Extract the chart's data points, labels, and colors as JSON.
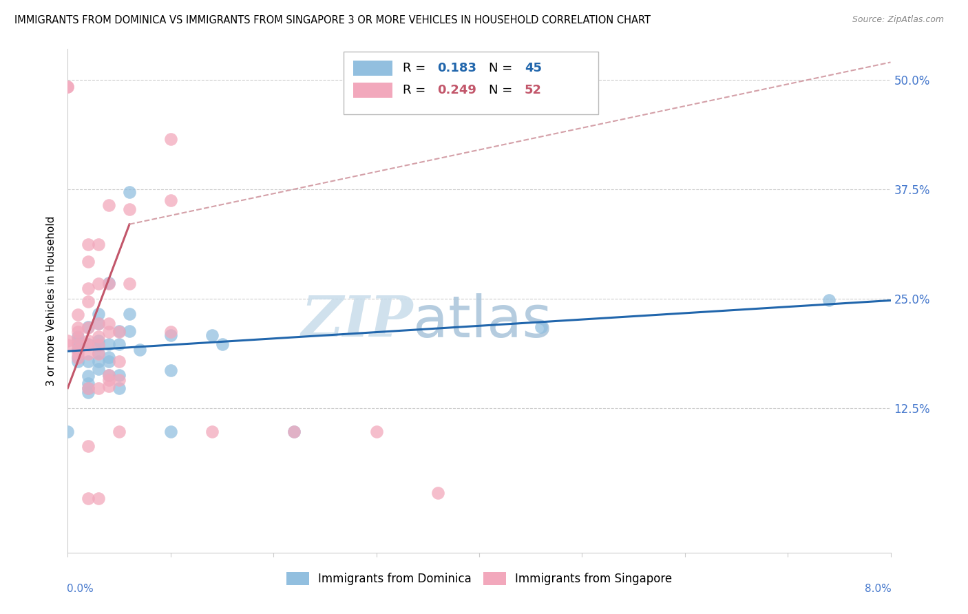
{
  "title": "IMMIGRANTS FROM DOMINICA VS IMMIGRANTS FROM SINGAPORE 3 OR MORE VEHICLES IN HOUSEHOLD CORRELATION CHART",
  "source": "Source: ZipAtlas.com",
  "ylabel": "3 or more Vehicles in Household",
  "ytick_labels": [
    "12.5%",
    "25.0%",
    "37.5%",
    "50.0%"
  ],
  "ytick_values": [
    0.125,
    0.25,
    0.375,
    0.5
  ],
  "xmin": 0.0,
  "xmax": 0.08,
  "ymin": -0.04,
  "ymax": 0.535,
  "watermark_zip": "ZIP",
  "watermark_atlas": "atlas",
  "legend_blue_r": "0.183",
  "legend_blue_n": "45",
  "legend_pink_r": "0.249",
  "legend_pink_n": "52",
  "blue_color": "#92bfdf",
  "pink_color": "#f2a8bc",
  "blue_line_color": "#2166ac",
  "pink_line_color": "#c2566a",
  "pink_dash_color": "#d4a0a8",
  "blue_line": [
    [
      0.0,
      0.19
    ],
    [
      0.08,
      0.248
    ]
  ],
  "pink_line_solid": [
    [
      0.0,
      0.148
    ],
    [
      0.006,
      0.335
    ]
  ],
  "pink_line_dash": [
    [
      0.006,
      0.335
    ],
    [
      0.08,
      0.52
    ]
  ],
  "blue_scatter": [
    [
      0.0,
      0.098
    ],
    [
      0.001,
      0.192
    ],
    [
      0.001,
      0.197
    ],
    [
      0.001,
      0.202
    ],
    [
      0.001,
      0.207
    ],
    [
      0.001,
      0.183
    ],
    [
      0.001,
      0.178
    ],
    [
      0.002,
      0.178
    ],
    [
      0.002,
      0.198
    ],
    [
      0.002,
      0.162
    ],
    [
      0.002,
      0.153
    ],
    [
      0.002,
      0.148
    ],
    [
      0.002,
      0.143
    ],
    [
      0.002,
      0.218
    ],
    [
      0.003,
      0.202
    ],
    [
      0.003,
      0.188
    ],
    [
      0.003,
      0.197
    ],
    [
      0.003,
      0.178
    ],
    [
      0.003,
      0.17
    ],
    [
      0.003,
      0.222
    ],
    [
      0.003,
      0.233
    ],
    [
      0.004,
      0.198
    ],
    [
      0.004,
      0.178
    ],
    [
      0.004,
      0.183
    ],
    [
      0.004,
      0.268
    ],
    [
      0.004,
      0.163
    ],
    [
      0.005,
      0.198
    ],
    [
      0.005,
      0.163
    ],
    [
      0.005,
      0.148
    ],
    [
      0.005,
      0.213
    ],
    [
      0.006,
      0.213
    ],
    [
      0.006,
      0.372
    ],
    [
      0.006,
      0.233
    ],
    [
      0.007,
      0.192
    ],
    [
      0.01,
      0.208
    ],
    [
      0.01,
      0.168
    ],
    [
      0.01,
      0.098
    ],
    [
      0.014,
      0.208
    ],
    [
      0.015,
      0.198
    ],
    [
      0.022,
      0.098
    ],
    [
      0.046,
      0.218
    ],
    [
      0.074,
      0.248
    ]
  ],
  "pink_scatter": [
    [
      0.0,
      0.202
    ],
    [
      0.0,
      0.197
    ],
    [
      0.0,
      0.492
    ],
    [
      0.0,
      0.492
    ],
    [
      0.001,
      0.232
    ],
    [
      0.001,
      0.217
    ],
    [
      0.001,
      0.212
    ],
    [
      0.001,
      0.205
    ],
    [
      0.001,
      0.198
    ],
    [
      0.001,
      0.192
    ],
    [
      0.001,
      0.187
    ],
    [
      0.001,
      0.182
    ],
    [
      0.002,
      0.312
    ],
    [
      0.002,
      0.292
    ],
    [
      0.002,
      0.262
    ],
    [
      0.002,
      0.247
    ],
    [
      0.002,
      0.217
    ],
    [
      0.002,
      0.202
    ],
    [
      0.002,
      0.197
    ],
    [
      0.002,
      0.187
    ],
    [
      0.002,
      0.148
    ],
    [
      0.002,
      0.082
    ],
    [
      0.002,
      0.022
    ],
    [
      0.003,
      0.312
    ],
    [
      0.003,
      0.267
    ],
    [
      0.003,
      0.222
    ],
    [
      0.003,
      0.207
    ],
    [
      0.003,
      0.197
    ],
    [
      0.003,
      0.187
    ],
    [
      0.003,
      0.148
    ],
    [
      0.003,
      0.022
    ],
    [
      0.004,
      0.357
    ],
    [
      0.004,
      0.267
    ],
    [
      0.004,
      0.222
    ],
    [
      0.004,
      0.212
    ],
    [
      0.004,
      0.163
    ],
    [
      0.004,
      0.157
    ],
    [
      0.004,
      0.15
    ],
    [
      0.005,
      0.212
    ],
    [
      0.005,
      0.178
    ],
    [
      0.005,
      0.157
    ],
    [
      0.005,
      0.098
    ],
    [
      0.006,
      0.352
    ],
    [
      0.006,
      0.267
    ],
    [
      0.01,
      0.432
    ],
    [
      0.01,
      0.362
    ],
    [
      0.01,
      0.212
    ],
    [
      0.014,
      0.098
    ],
    [
      0.022,
      0.098
    ],
    [
      0.03,
      0.098
    ],
    [
      0.036,
      0.028
    ]
  ]
}
